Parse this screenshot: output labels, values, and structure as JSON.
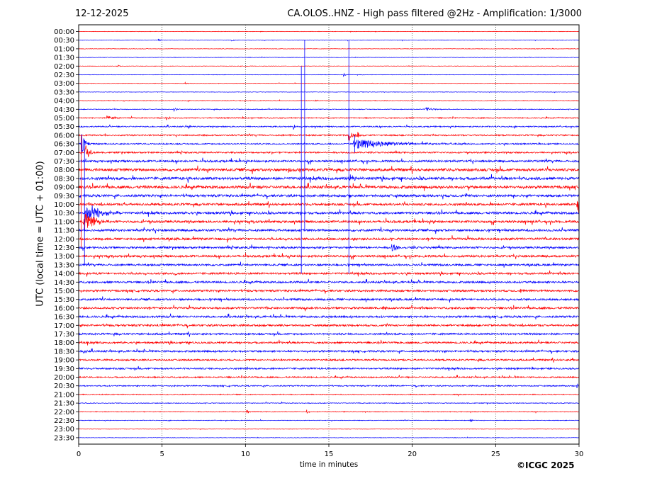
{
  "header": {
    "date": "12-12-2025",
    "title": "CA.OLOS..HNZ - High pass filtered @2Hz - Amplification: 1/3000"
  },
  "footer": {
    "copyright": "©ICGC 2025"
  },
  "chart_data": {
    "type": "line",
    "title": "CA.OLOS..HNZ - High pass filtered @2Hz - Amplification: 1/3000",
    "xlabel": "time in minutes",
    "ylabel": "UTC (local time = UTC + 01:00)",
    "xlim": [
      0,
      30
    ],
    "x_ticks": [
      0,
      5,
      10,
      15,
      20,
      25,
      30
    ],
    "rows": [
      "00:00",
      "00:30",
      "01:00",
      "01:30",
      "02:00",
      "02:30",
      "03:00",
      "03:30",
      "04:00",
      "04:30",
      "05:00",
      "05:30",
      "06:00",
      "06:30",
      "07:00",
      "07:30",
      "08:00",
      "08:30",
      "09:00",
      "09:30",
      "10:00",
      "10:30",
      "11:00",
      "11:30",
      "12:00",
      "12:30",
      "13:00",
      "13:30",
      "14:00",
      "14:30",
      "15:00",
      "15:30",
      "16:00",
      "16:30",
      "17:00",
      "17:30",
      "18:00",
      "18:30",
      "19:00",
      "19:30",
      "20:00",
      "20:30",
      "21:00",
      "21:30",
      "22:00",
      "22:30",
      "23:00",
      "23:30"
    ],
    "series_colors": [
      "#ff0000",
      "#0000ff"
    ],
    "noise_level": [
      0.3,
      0.3,
      0.3,
      0.3,
      0.3,
      0.3,
      0.3,
      0.3,
      0.4,
      0.5,
      0.7,
      0.8,
      0.9,
      0.9,
      1.0,
      1.4,
      1.8,
      1.8,
      1.8,
      1.6,
      1.5,
      1.6,
      1.5,
      1.5,
      1.5,
      1.3,
      1.4,
      1.3,
      1.3,
      1.3,
      1.3,
      1.3,
      1.3,
      1.3,
      1.3,
      1.2,
      1.2,
      1.2,
      1.1,
      1.1,
      0.9,
      0.8,
      0.6,
      0.5,
      0.5,
      0.4,
      0.3,
      0.3
    ],
    "events": [
      {
        "row": "00:30",
        "t": 4.8,
        "amp": 2,
        "dur": 0.15
      },
      {
        "row": "00:30",
        "t": 9.2,
        "amp": 1.5,
        "dur": 0.1
      },
      {
        "row": "02:00",
        "t": 2.3,
        "amp": 3,
        "dur": 0.1
      },
      {
        "row": "02:30",
        "t": 15.9,
        "amp": 3,
        "dur": 0.1
      },
      {
        "row": "03:00",
        "t": 6.4,
        "amp": 2,
        "dur": 0.1
      },
      {
        "row": "04:00",
        "t": 14.2,
        "amp": 2,
        "dur": 0.1
      },
      {
        "row": "04:30",
        "t": 5.7,
        "amp": 3,
        "dur": 0.2
      },
      {
        "row": "04:30",
        "t": 20.8,
        "amp": 3,
        "dur": 0.4
      },
      {
        "row": "05:00",
        "t": 1.7,
        "amp": 3,
        "dur": 0.5
      },
      {
        "row": "05:00",
        "t": 5.2,
        "amp": 4,
        "dur": 0.2
      },
      {
        "row": "05:30",
        "t": 6.6,
        "amp": 4,
        "dur": 0.1
      },
      {
        "row": "05:30",
        "t": 12.9,
        "amp": 4,
        "dur": 0.1
      },
      {
        "row": "06:00",
        "t": 16.2,
        "amp": 10,
        "dur": 0.2
      },
      {
        "row": "06:00",
        "t": 16.7,
        "amp": 6,
        "dur": 0.2
      },
      {
        "row": "06:30",
        "t": 16.5,
        "amp": 8,
        "dur": 2.0
      },
      {
        "row": "06:30",
        "t": 0.2,
        "amp": 16,
        "dur": 0.2
      },
      {
        "row": "07:00",
        "t": 0.4,
        "amp": 14,
        "dur": 0.2
      },
      {
        "row": "08:00",
        "t": 12.6,
        "amp": 4,
        "dur": 0.3
      },
      {
        "row": "08:30",
        "t": 16.2,
        "amp": 5,
        "dur": 0.4
      },
      {
        "row": "10:00",
        "t": 29.9,
        "amp": 16,
        "dur": 0.4
      },
      {
        "row": "10:30",
        "t": 0.4,
        "amp": 18,
        "dur": 0.7
      },
      {
        "row": "11:00",
        "t": 0.3,
        "amp": 14,
        "dur": 0.6
      },
      {
        "row": "12:30",
        "t": 18.8,
        "amp": 6,
        "dur": 0.3
      },
      {
        "row": "14:00",
        "t": 5.8,
        "amp": 4,
        "dur": 0.1
      },
      {
        "row": "15:00",
        "t": 26.5,
        "amp": 4,
        "dur": 0.1
      },
      {
        "row": "16:00",
        "t": 18.3,
        "amp": 4,
        "dur": 0.1
      },
      {
        "row": "18:30",
        "t": 0.3,
        "amp": 4,
        "dur": 0.15
      },
      {
        "row": "19:00",
        "t": 29.6,
        "amp": 3,
        "dur": 0.1
      },
      {
        "row": "20:30",
        "t": 29.9,
        "amp": 3,
        "dur": 0.1
      },
      {
        "row": "22:00",
        "t": 10.1,
        "amp": 3,
        "dur": 0.1
      },
      {
        "row": "22:00",
        "t": 13.7,
        "amp": 3,
        "dur": 0.1
      },
      {
        "row": "22:30",
        "t": 23.5,
        "amp": 3,
        "dur": 0.1
      }
    ],
    "vertical_spikes": [
      {
        "t": 0.15,
        "from": "06:00",
        "to": "12:30",
        "color": "#ff0000"
      },
      {
        "t": 0.35,
        "from": "06:30",
        "to": "13:30",
        "color": "#0000ff"
      },
      {
        "t": 13.35,
        "from": "02:00",
        "to": "14:00",
        "color": "#0000ff"
      },
      {
        "t": 13.55,
        "from": "00:30",
        "to": "11:30",
        "color": "#0000ff"
      },
      {
        "t": 16.2,
        "from": "00:30",
        "to": "14:00",
        "color": "#0000ff"
      },
      {
        "t": 16.55,
        "from": "06:00",
        "to": "07:00",
        "color": "#0000ff"
      }
    ],
    "grid": "vertical dotted at 5-minute ticks"
  }
}
